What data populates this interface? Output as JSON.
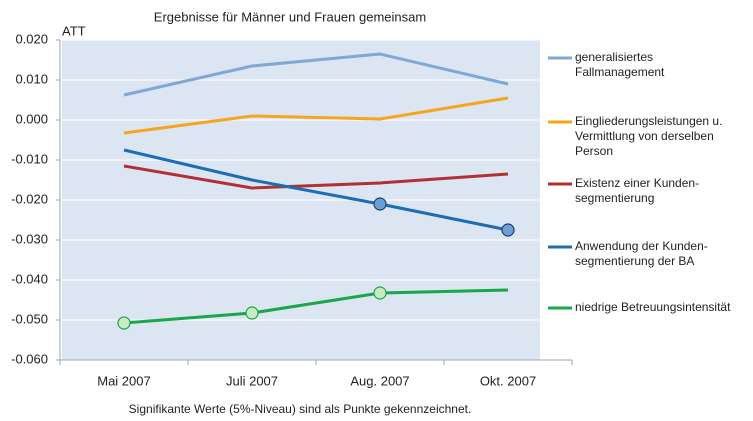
{
  "chart_data": {
    "type": "line",
    "title": "Ergebnisse für Männer und Frauen gemeinsam",
    "ylabel": "ATT",
    "note": "Signifikante Werte (5%-Niveau) sind als Punkte gekennzeichnet.",
    "categories": [
      "Mai 2007",
      "Juli 2007",
      "Aug. 2007",
      "Okt. 2007"
    ],
    "series": [
      {
        "name": "generalisiertes\nFallmanagement",
        "color": "#7fa9d4",
        "values": [
          0.00625,
          0.0135,
          0.0165,
          0.009
        ],
        "markers": [
          false,
          false,
          false,
          false
        ]
      },
      {
        "name": "Eingliederungsleistungen u.\nVermittlung von derselben\nPerson",
        "color": "#f4a51c",
        "values": [
          -0.00325,
          0.001,
          0.00025,
          0.0055
        ],
        "markers": [
          false,
          false,
          false,
          false
        ]
      },
      {
        "name": "Existenz einer Kunden-\nsegmentierung",
        "color": "#b22f35",
        "values": [
          -0.0115,
          -0.017,
          -0.01575,
          -0.0135
        ],
        "markers": [
          false,
          false,
          false,
          false
        ]
      },
      {
        "name": "Anwendung der Kunden-\nsegmentierung der BA",
        "color": "#1c6db3",
        "marker_color": "#6d9ed6",
        "values": [
          -0.0075,
          -0.015,
          -0.021,
          -0.0275
        ],
        "markers": [
          false,
          false,
          true,
          true
        ]
      },
      {
        "name": "niedrige Betreuungsintensität",
        "color": "#1aa64b",
        "marker_color": "#c8ebc1",
        "values": [
          -0.05075,
          -0.04825,
          -0.04325,
          -0.0425
        ],
        "markers": [
          true,
          true,
          true,
          false
        ]
      }
    ],
    "ylim": [
      -0.06,
      0.02
    ],
    "yticks": [
      {
        "value": -0.06,
        "label": "-0.060"
      },
      {
        "value": -0.05,
        "label": "-0.050"
      },
      {
        "value": -0.04,
        "label": "-0.040"
      },
      {
        "value": -0.03,
        "label": "-0.030"
      },
      {
        "value": -0.02,
        "label": "-0.020"
      },
      {
        "value": -0.01,
        "label": "-0.010"
      },
      {
        "value": 0,
        "label": "0.000"
      },
      {
        "value": 0.01,
        "label": "0.010"
      },
      {
        "value": 0.02,
        "label": "0.020"
      }
    ],
    "grid": true,
    "background": "#dce5f2"
  }
}
